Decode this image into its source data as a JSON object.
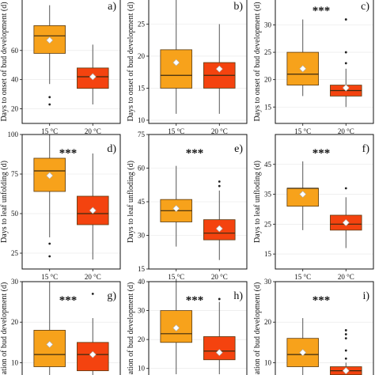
{
  "colors": {
    "c15": "#f7a21b",
    "c20": "#f4430f",
    "frame": "#111111",
    "grid": "#e6e6e6",
    "whisker": "#555555"
  },
  "chart_data": [
    {
      "panel": "a",
      "type": "box",
      "ylabel": "Days to onset of bud development (d)",
      "ylim": [
        10,
        100
      ],
      "yticks": [
        20,
        40,
        60
      ],
      "categories": [
        "15 °C",
        "20 °C"
      ],
      "boxes": [
        {
          "q1": 58,
          "median": 70,
          "q3": 77,
          "whislo": 37,
          "whishi": 91,
          "mean": 67,
          "outliers": [
            28,
            23
          ]
        },
        {
          "q1": 34,
          "median": 42,
          "q3": 48,
          "whislo": 23,
          "whishi": 64,
          "mean": 42,
          "outliers": []
        }
      ],
      "significance": "",
      "show_xticks": true
    },
    {
      "panel": "b",
      "type": "box",
      "ylabel": "Days to onset of bud development (d)",
      "ylim": [
        9.5,
        30
      ],
      "yticks": [
        10,
        15,
        20,
        25
      ],
      "categories": [
        "15 °C",
        "20 °C"
      ],
      "boxes": [
        {
          "q1": 15,
          "median": 17,
          "q3": 21,
          "whislo": 11,
          "whishi": 29,
          "mean": 19,
          "outliers": []
        },
        {
          "q1": 15,
          "median": 17,
          "q3": 19,
          "whislo": 11,
          "whishi": 25,
          "mean": 18,
          "outliers": [
            29
          ]
        }
      ],
      "significance": "",
      "show_xticks": true
    },
    {
      "panel": "c",
      "type": "box",
      "ylabel": "Days to onset of bud development (d)",
      "ylim": [
        12,
        36
      ],
      "yticks": [
        15,
        20,
        25,
        30
      ],
      "categories": [
        "15 °C",
        "20 °C"
      ],
      "boxes": [
        {
          "q1": 19,
          "median": 21,
          "q3": 25,
          "whislo": 17,
          "whishi": 31,
          "mean": 22,
          "outliers": []
        },
        {
          "q1": 17,
          "median": 18,
          "q3": 19,
          "whislo": 15,
          "whishi": 22,
          "mean": 18.5,
          "outliers": [
            23,
            25,
            31
          ]
        }
      ],
      "significance": "***",
      "show_xticks": true
    },
    {
      "panel": "d",
      "type": "box",
      "ylabel": "Days to leaf unfolding (d)",
      "ylim": [
        15,
        100
      ],
      "yticks": [
        25,
        50,
        75,
        100
      ],
      "categories": [
        "15 °C",
        "20 °C"
      ],
      "boxes": [
        {
          "q1": 64,
          "median": 77,
          "q3": 85,
          "whislo": 35,
          "whishi": 100,
          "mean": 74,
          "outliers": [
            31,
            23
          ]
        },
        {
          "q1": 43,
          "median": 50,
          "q3": 61,
          "whislo": 21,
          "whishi": 88,
          "mean": 52,
          "outliers": []
        }
      ],
      "significance": "***",
      "show_xticks": true
    },
    {
      "panel": "e",
      "type": "box",
      "ylabel": "Days to leaf unfloding (d)",
      "ylim": [
        15,
        75
      ],
      "yticks": [
        15,
        30,
        45,
        60,
        75
      ],
      "categories": [
        "15 °C",
        "20 °C"
      ],
      "boxes": [
        {
          "q1": 36,
          "median": 41,
          "q3": 46,
          "whislo": 25,
          "whishi": 61,
          "mean": 42,
          "outliers": []
        },
        {
          "q1": 28,
          "median": 31,
          "q3": 37,
          "whislo": 19,
          "whishi": 50,
          "mean": 33,
          "outliers": [
            52,
            54
          ]
        }
      ],
      "significance": "***",
      "show_xticks": true
    },
    {
      "panel": "f",
      "type": "box",
      "ylabel": "Days to leaf unfloding (d)",
      "ylim": [
        10,
        55
      ],
      "yticks": [
        15,
        25,
        35,
        45
      ],
      "categories": [
        "15 °C",
        "20 °C"
      ],
      "boxes": [
        {
          "q1": 31,
          "median": 37,
          "q3": 37,
          "whislo": 23,
          "whishi": 46,
          "mean": 35,
          "outliers": []
        },
        {
          "q1": 23,
          "median": 25,
          "q3": 28,
          "whislo": 17,
          "whishi": 34,
          "mean": 25.5,
          "outliers": [
            37
          ]
        }
      ],
      "significance": "***",
      "show_xticks": true
    },
    {
      "panel": "g",
      "type": "box",
      "ylabel": "ation of bud development (d)",
      "ylim": [
        5,
        30
      ],
      "yticks": [
        10,
        20,
        30
      ],
      "categories": [
        "15 °C",
        "20 °C"
      ],
      "boxes": [
        {
          "q1": 9,
          "median": 12,
          "q3": 18,
          "whislo": 5,
          "whishi": 30,
          "mean": 14.5,
          "outliers": []
        },
        {
          "q1": 8,
          "median": 12,
          "q3": 15,
          "whislo": 5,
          "whishi": 21,
          "mean": 12,
          "outliers": [
            27
          ]
        }
      ],
      "significance": "***",
      "show_xticks": false
    },
    {
      "panel": "h",
      "type": "box",
      "ylabel": "ation of bud development (d)",
      "ylim": [
        5,
        40
      ],
      "yticks": [
        10,
        20,
        30,
        40
      ],
      "categories": [
        "15 °C",
        "20 °C"
      ],
      "boxes": [
        {
          "q1": 19,
          "median": 22,
          "q3": 30,
          "whislo": 8,
          "whishi": 41,
          "mean": 24,
          "outliers": []
        },
        {
          "q1": 13,
          "median": 16,
          "q3": 21,
          "whislo": 8,
          "whishi": 33,
          "mean": 15.5,
          "outliers": [
            34
          ]
        }
      ],
      "significance": "***",
      "show_xticks": false
    },
    {
      "panel": "i",
      "type": "box",
      "ylabel": "ation of bud development (d)",
      "ylim": [
        5,
        30
      ],
      "yticks": [
        10,
        20,
        30
      ],
      "categories": [
        "15 °C",
        "20 °C"
      ],
      "boxes": [
        {
          "q1": 9,
          "median": 12,
          "q3": 16,
          "whislo": 5,
          "whishi": 21,
          "mean": 12.5,
          "outliers": []
        },
        {
          "q1": 7,
          "median": 8,
          "q3": 9,
          "whislo": 5,
          "whishi": 10,
          "mean": 8,
          "outliers": [
            11,
            13,
            16,
            17,
            18
          ]
        }
      ],
      "significance": "***",
      "show_xticks": false
    }
  ]
}
